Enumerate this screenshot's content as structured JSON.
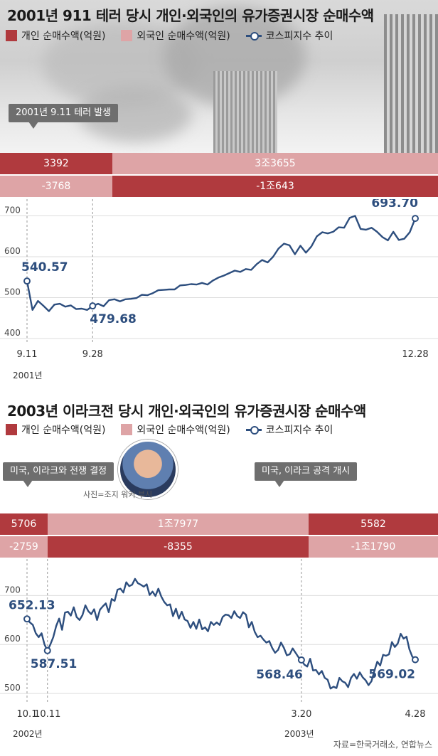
{
  "source": "자료=한국거래소, 연합뉴스",
  "photo_caption": "사진=조지 워커 부시",
  "legend": {
    "individual": "개인 순매수액(억원)",
    "foreign": "외국인 순매수액(억원)",
    "kospi": "코스피지수 추이"
  },
  "colors": {
    "individual": "#b03a3e",
    "foreign": "#dea4a6",
    "line": "#2d4e7e"
  },
  "chart1": {
    "title": "2001년 911 테러 당시 개인·외국인의 유가증권시장 순매수액",
    "callout": "2001년 9.11 테러 발생",
    "year_label": "2001년",
    "bars": [
      {
        "individual": "3392",
        "foreign": "-3768"
      },
      {
        "individual": "3조3655",
        "foreign": "-1조643"
      }
    ]
  },
  "chart2": {
    "title": "2003년 이라크전 당시 개인·외국인의 유가증권시장 순매수액",
    "callout_left": "미국, 이라크와 전쟁 결정",
    "callout_right": "미국, 이라크 공격 개시",
    "year_label_left": "2002년",
    "year_label_right": "2003년",
    "bars": [
      {
        "individual": "5706",
        "foreign": "-2759"
      },
      {
        "individual": "1조7977",
        "foreign": "-8355"
      },
      {
        "individual": "5582",
        "foreign": "-1조1790"
      }
    ]
  },
  "chart_data": [
    {
      "type": "line",
      "title": "2001년 911 테러 당시 개인·외국인의 유가증권시장 순매수액",
      "series": [
        {
          "name": "코스피지수 추이"
        }
      ],
      "ylim": [
        400,
        720
      ],
      "yticks": [
        400,
        500,
        600,
        700
      ],
      "xticks": [
        "9.11",
        "9.28",
        "12.28"
      ],
      "grid": true,
      "annotations": [
        {
          "label": "540.57",
          "index": 0
        },
        {
          "label": "479.68",
          "index": 12
        },
        {
          "label": "693.70",
          "index": 71
        }
      ],
      "y": [
        540.57,
        470,
        492,
        480,
        467,
        483,
        485,
        478,
        481,
        472,
        473,
        470,
        479.68,
        485,
        479,
        494,
        496,
        491,
        496,
        497,
        499,
        507,
        506,
        511,
        518,
        519,
        520,
        520,
        530,
        531,
        533,
        532,
        536,
        532,
        542,
        549,
        554,
        560,
        566,
        563,
        570,
        568,
        582,
        592,
        586,
        600,
        620,
        632,
        628,
        606,
        627,
        610,
        625,
        650,
        660,
        657,
        661,
        672,
        671,
        695,
        700,
        668,
        666,
        671,
        661,
        648,
        640,
        661,
        641,
        644,
        660,
        693.7
      ]
    },
    {
      "type": "line",
      "title": "2003년 이라크전 당시 개인·외국인의 유가증권시장 순매수액",
      "series": [
        {
          "name": "코스피지수 추이"
        }
      ],
      "ylim": [
        490,
        760
      ],
      "yticks": [
        500,
        600,
        700
      ],
      "xticks": [
        "10.1",
        "10.11",
        "3.20",
        "4.28"
      ],
      "grid": true,
      "annotations": [
        {
          "label": "652.13",
          "index": 0
        },
        {
          "label": "587.51",
          "index": 7
        },
        {
          "label": "568.46",
          "index": 94
        },
        {
          "label": "569.02",
          "index": 133
        }
      ],
      "y": [
        652.13,
        645,
        640,
        623,
        615,
        623,
        600,
        587.51,
        600,
        615,
        638,
        653,
        630,
        665,
        667,
        659,
        676,
        656,
        650,
        660,
        680,
        668,
        662,
        672,
        650,
        671,
        678,
        684,
        666,
        693,
        689,
        712,
        714,
        706,
        727,
        719,
        722,
        734,
        725,
        722,
        718,
        723,
        701,
        708,
        699,
        714,
        698,
        687,
        680,
        682,
        658,
        673,
        653,
        667,
        651,
        648,
        634,
        646,
        632,
        651,
        631,
        635,
        627,
        646,
        640,
        645,
        640,
        656,
        661,
        660,
        654,
        668,
        658,
        654,
        666,
        661,
        635,
        646,
        626,
        615,
        618,
        610,
        604,
        607,
        593,
        583,
        589,
        604,
        593,
        578,
        580,
        592,
        583,
        574,
        568.46,
        559,
        555,
        571,
        547,
        548,
        539,
        546,
        532,
        528,
        510,
        514,
        511,
        532,
        525,
        522,
        513,
        532,
        540,
        530,
        543,
        533,
        527,
        517,
        525,
        546,
        565,
        557,
        579,
        577,
        580,
        605,
        595,
        602,
        622,
        612,
        616,
        590,
        575,
        569.02
      ]
    }
  ]
}
